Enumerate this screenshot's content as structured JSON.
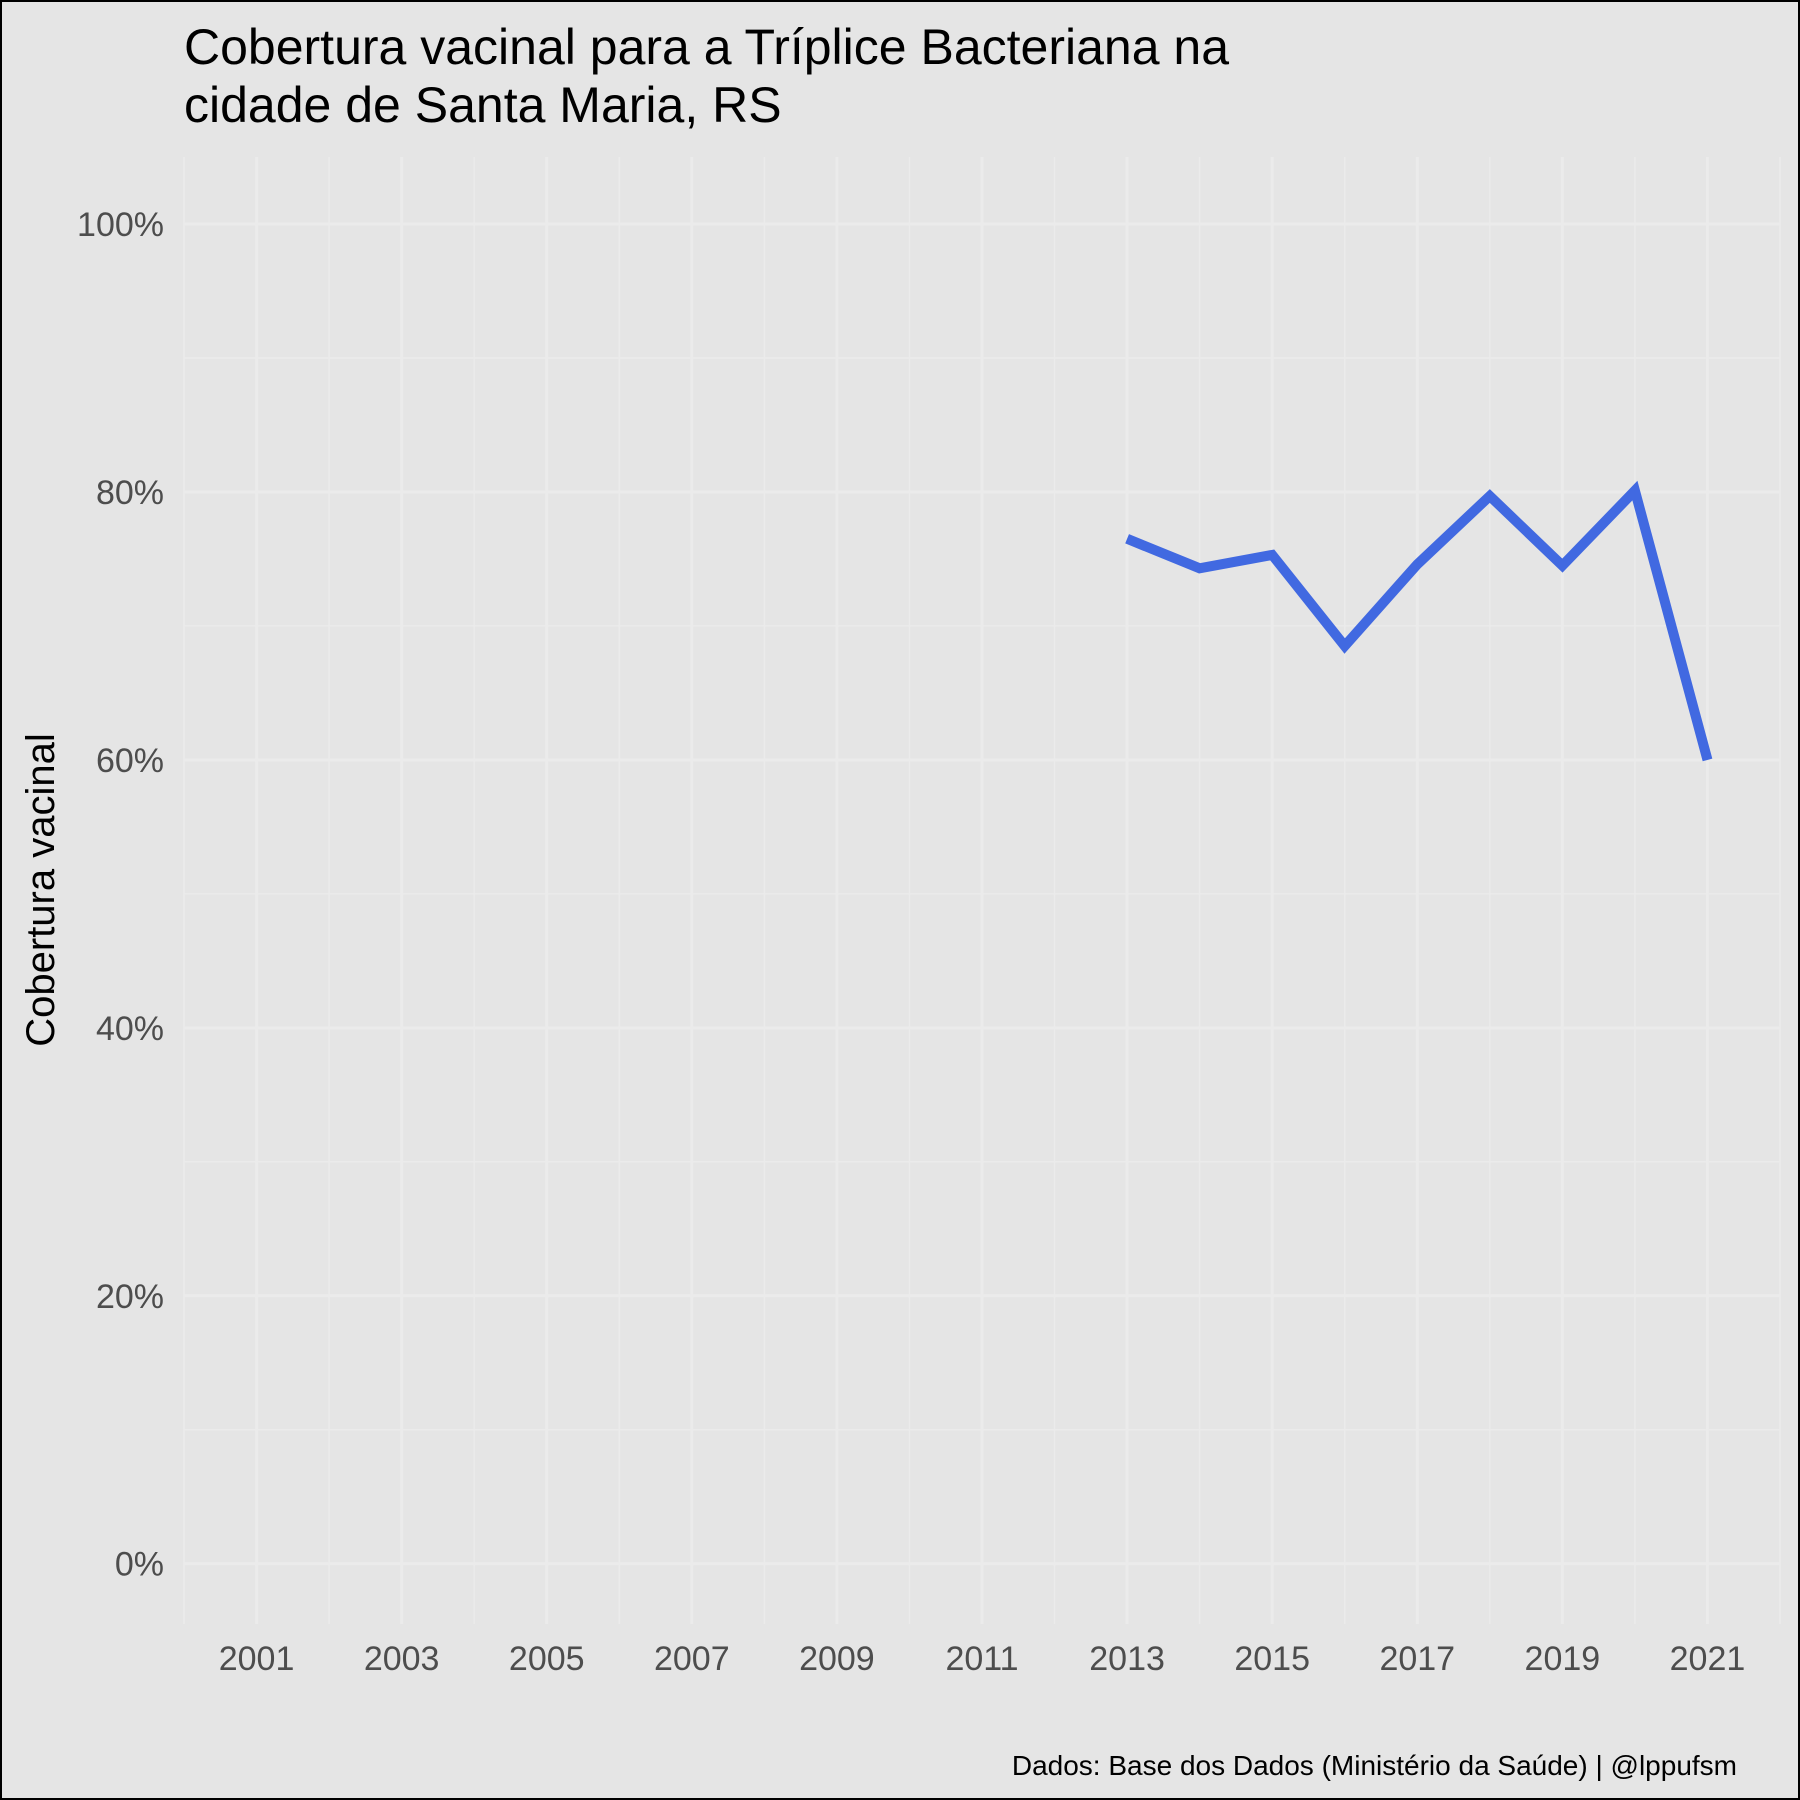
{
  "chart_data": {
    "type": "line",
    "title": "Cobertura vacinal para a Tríplice Bacteriana na cidade de Santa Maria, RS",
    "title_lines": [
      "Cobertura vacinal para a Tríplice Bacteriana na",
      "cidade de Santa Maria, RS"
    ],
    "xlabel": "",
    "ylabel": "Cobertura vacinal",
    "caption": "Dados: Base dos Dados (Ministério da Saúde) | @lppufsm",
    "xlim": [
      2000,
      2022
    ],
    "ylim": [
      -0.045,
      1.05
    ],
    "x_ticks": [
      2001,
      2003,
      2005,
      2007,
      2009,
      2011,
      2013,
      2015,
      2017,
      2019,
      2021
    ],
    "x_tick_labels": [
      "2001",
      "2003",
      "2005",
      "2007",
      "2009",
      "2011",
      "2013",
      "2015",
      "2017",
      "2019",
      "2021"
    ],
    "y_ticks": [
      0,
      0.2,
      0.4,
      0.6,
      0.8,
      1.0
    ],
    "y_tick_labels": [
      "0%",
      "20%",
      "40%",
      "60%",
      "80%",
      "100%"
    ],
    "grid": true,
    "legend": "none",
    "series": [
      {
        "color": "#4169e1",
        "x": [
          2013,
          2014,
          2015,
          2016,
          2017,
          2018,
          2019,
          2020,
          2021
        ],
        "y": [
          0.765,
          0.743,
          0.753,
          0.685,
          0.746,
          0.797,
          0.745,
          0.801,
          0.6
        ]
      }
    ],
    "colors": {
      "background": "#e5e5e5",
      "grid": "#ebebeb",
      "line": "#4169e1"
    }
  }
}
